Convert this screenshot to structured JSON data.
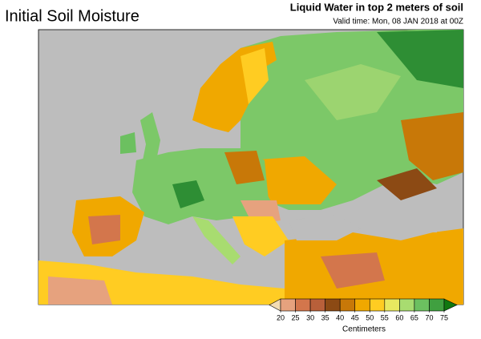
{
  "header": {
    "title": "Initial Soil Moisture",
    "subtitle": "Liquid Water in top 2 meters of soil",
    "valid_time": "Valid time: Mon, 08 JAN 2018 at 00Z"
  },
  "legend": {
    "ticks": [
      20,
      25,
      30,
      35,
      40,
      45,
      50,
      55,
      60,
      65,
      70,
      75
    ],
    "colors": [
      "#f2dcb4",
      "#e6a27e",
      "#d3764c",
      "#b8603a",
      "#8c4a14",
      "#c87808",
      "#f0a800",
      "#ffcc22",
      "#e8e860",
      "#a8dc70",
      "#6cc060",
      "#40a040",
      "#107810"
    ],
    "unit": "Centimeters"
  }
}
